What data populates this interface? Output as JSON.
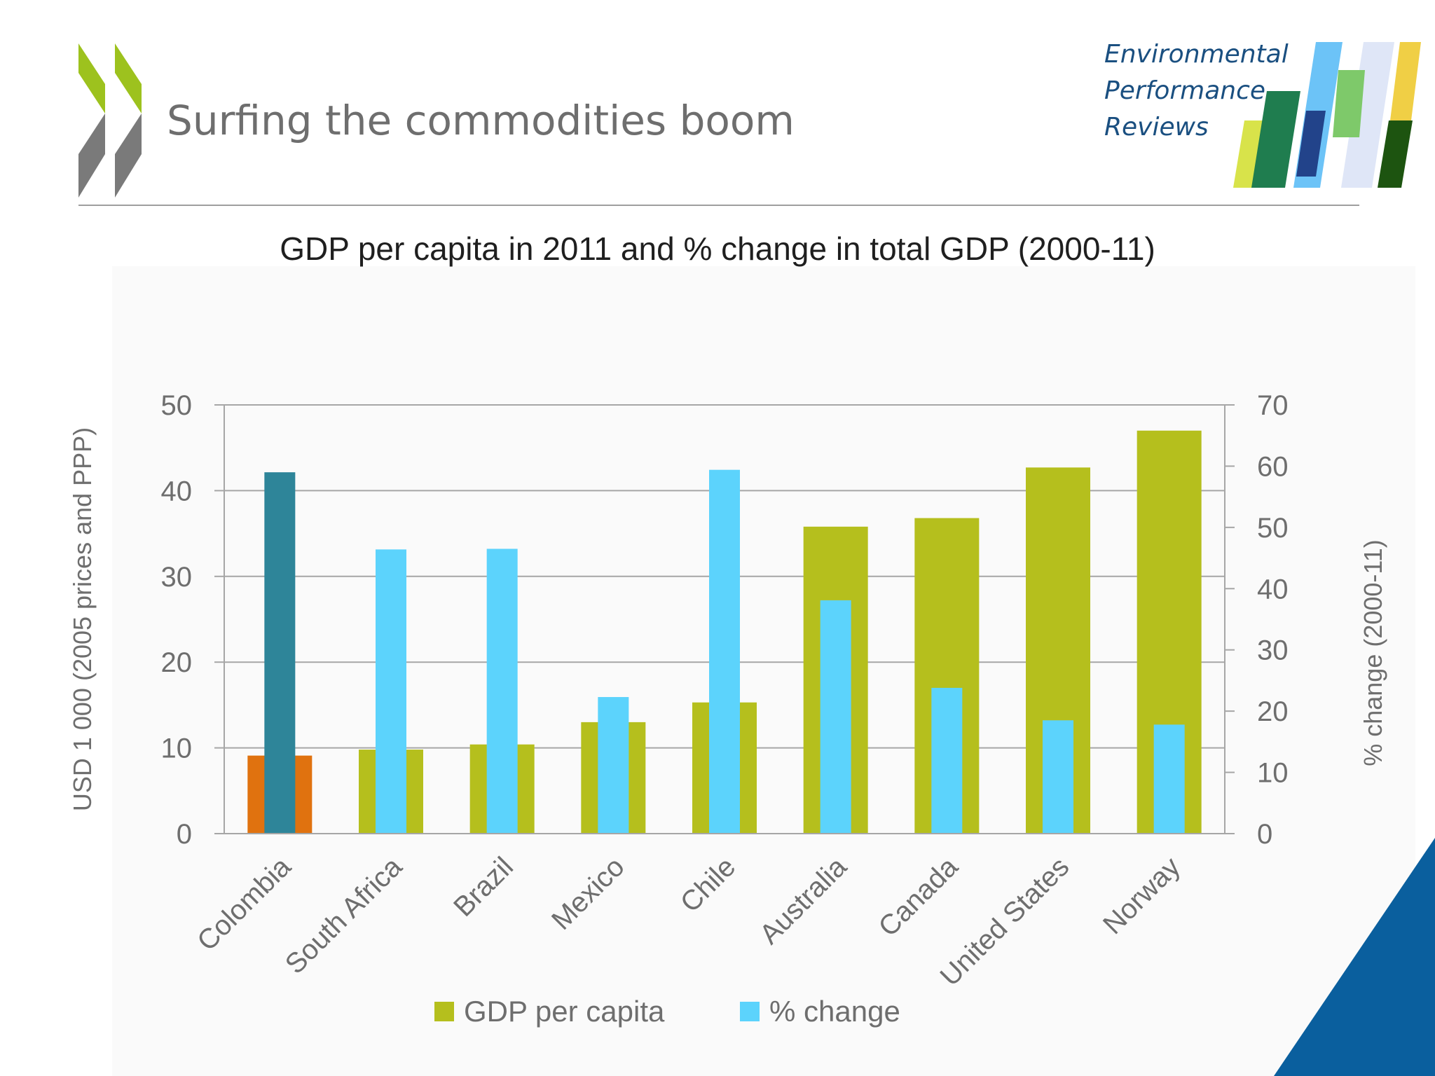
{
  "slide": {
    "title": "Surfing the commodities boom",
    "brand": {
      "line1": "Environmental",
      "line2": "Performance",
      "line3": "Reviews"
    }
  },
  "colors": {
    "gdp": "#b5bf1d",
    "change": "#5cd3fc",
    "gdp_highlight": "#e0720f",
    "change_highlight": "#2e8599",
    "grid": "#a6a6a6",
    "text": "#6e6e6e"
  },
  "chart_data": {
    "type": "bar",
    "title": "GDP per capita in 2011 and % change in total GDP (2000-11)",
    "ylabel": "USD 1 000 (2005 prices and PPP)",
    "y2label": "% change (2000-11)",
    "ylim": [
      0,
      50
    ],
    "y2lim": [
      0,
      70
    ],
    "yticks": [
      "0",
      "10",
      "20",
      "30",
      "40",
      "50"
    ],
    "y2ticks": [
      "0",
      "10",
      "20",
      "30",
      "40",
      "50",
      "60",
      "70"
    ],
    "grid": true,
    "legend_position": "bottom",
    "highlighted_category": "Colombia",
    "categories": [
      "Colombia",
      "South Africa",
      "Brazil",
      "Mexico",
      "Chile",
      "Australia",
      "Canada",
      "United States",
      "Norway"
    ],
    "series": [
      {
        "name": "GDP per capita",
        "axis": "left",
        "values": [
          9.1,
          9.8,
          10.4,
          13.0,
          15.3,
          35.8,
          36.8,
          42.7,
          47.0
        ]
      },
      {
        "name": "% change",
        "axis": "right",
        "values": [
          59,
          46.4,
          46.5,
          22.3,
          59.4,
          38.1,
          23.8,
          18.5,
          17.8
        ]
      }
    ]
  }
}
